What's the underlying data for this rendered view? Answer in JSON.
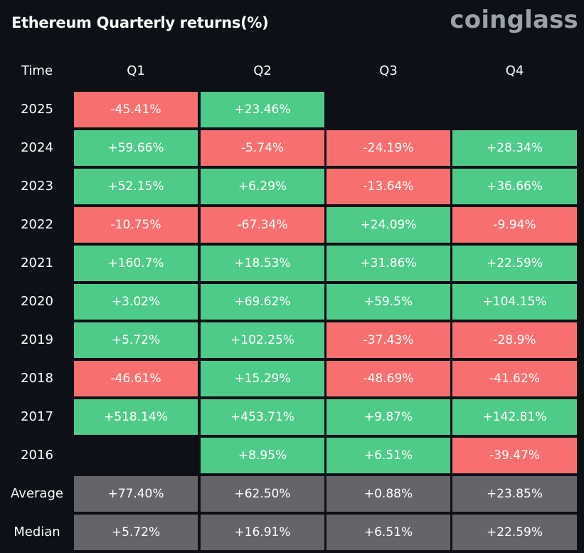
{
  "header": {
    "title": "Ethereum Quarterly returns(%)",
    "brand": "coinglass"
  },
  "colors": {
    "background": "#0d1017",
    "positive": "#4fcb89",
    "negative": "#f7706f",
    "aggregate": "#656569",
    "brand": "#9ba1aa"
  },
  "chart_data": {
    "type": "table",
    "title": "Ethereum Quarterly returns(%)",
    "corner_label": "Time",
    "columns": [
      "Q1",
      "Q2",
      "Q3",
      "Q4"
    ],
    "rows": [
      {
        "label": "2025",
        "values": [
          "-45.41%",
          "+23.46%",
          null,
          null
        ]
      },
      {
        "label": "2024",
        "values": [
          "+59.66%",
          "-5.74%",
          "-24.19%",
          "+28.34%"
        ]
      },
      {
        "label": "2023",
        "values": [
          "+52.15%",
          "+6.29%",
          "-13.64%",
          "+36.66%"
        ]
      },
      {
        "label": "2022",
        "values": [
          "-10.75%",
          "-67.34%",
          "+24.09%",
          "-9.94%"
        ]
      },
      {
        "label": "2021",
        "values": [
          "+160.7%",
          "+18.53%",
          "+31.86%",
          "+22.59%"
        ]
      },
      {
        "label": "2020",
        "values": [
          "+3.02%",
          "+69.62%",
          "+59.5%",
          "+104.15%"
        ]
      },
      {
        "label": "2019",
        "values": [
          "+5.72%",
          "+102.25%",
          "-37.43%",
          "-28.9%"
        ]
      },
      {
        "label": "2018",
        "values": [
          "-46.61%",
          "+15.29%",
          "-48.69%",
          "-41.62%"
        ]
      },
      {
        "label": "2017",
        "values": [
          "+518.14%",
          "+453.71%",
          "+9.87%",
          "+142.81%"
        ]
      },
      {
        "label": "2016",
        "values": [
          null,
          "+8.95%",
          "+6.51%",
          "-39.47%"
        ]
      }
    ],
    "summary": [
      {
        "label": "Average",
        "values": [
          "+77.40%",
          "+62.50%",
          "+0.88%",
          "+23.85%"
        ]
      },
      {
        "label": "Median",
        "values": [
          "+5.72%",
          "+16.91%",
          "+6.51%",
          "+22.59%"
        ]
      }
    ]
  }
}
